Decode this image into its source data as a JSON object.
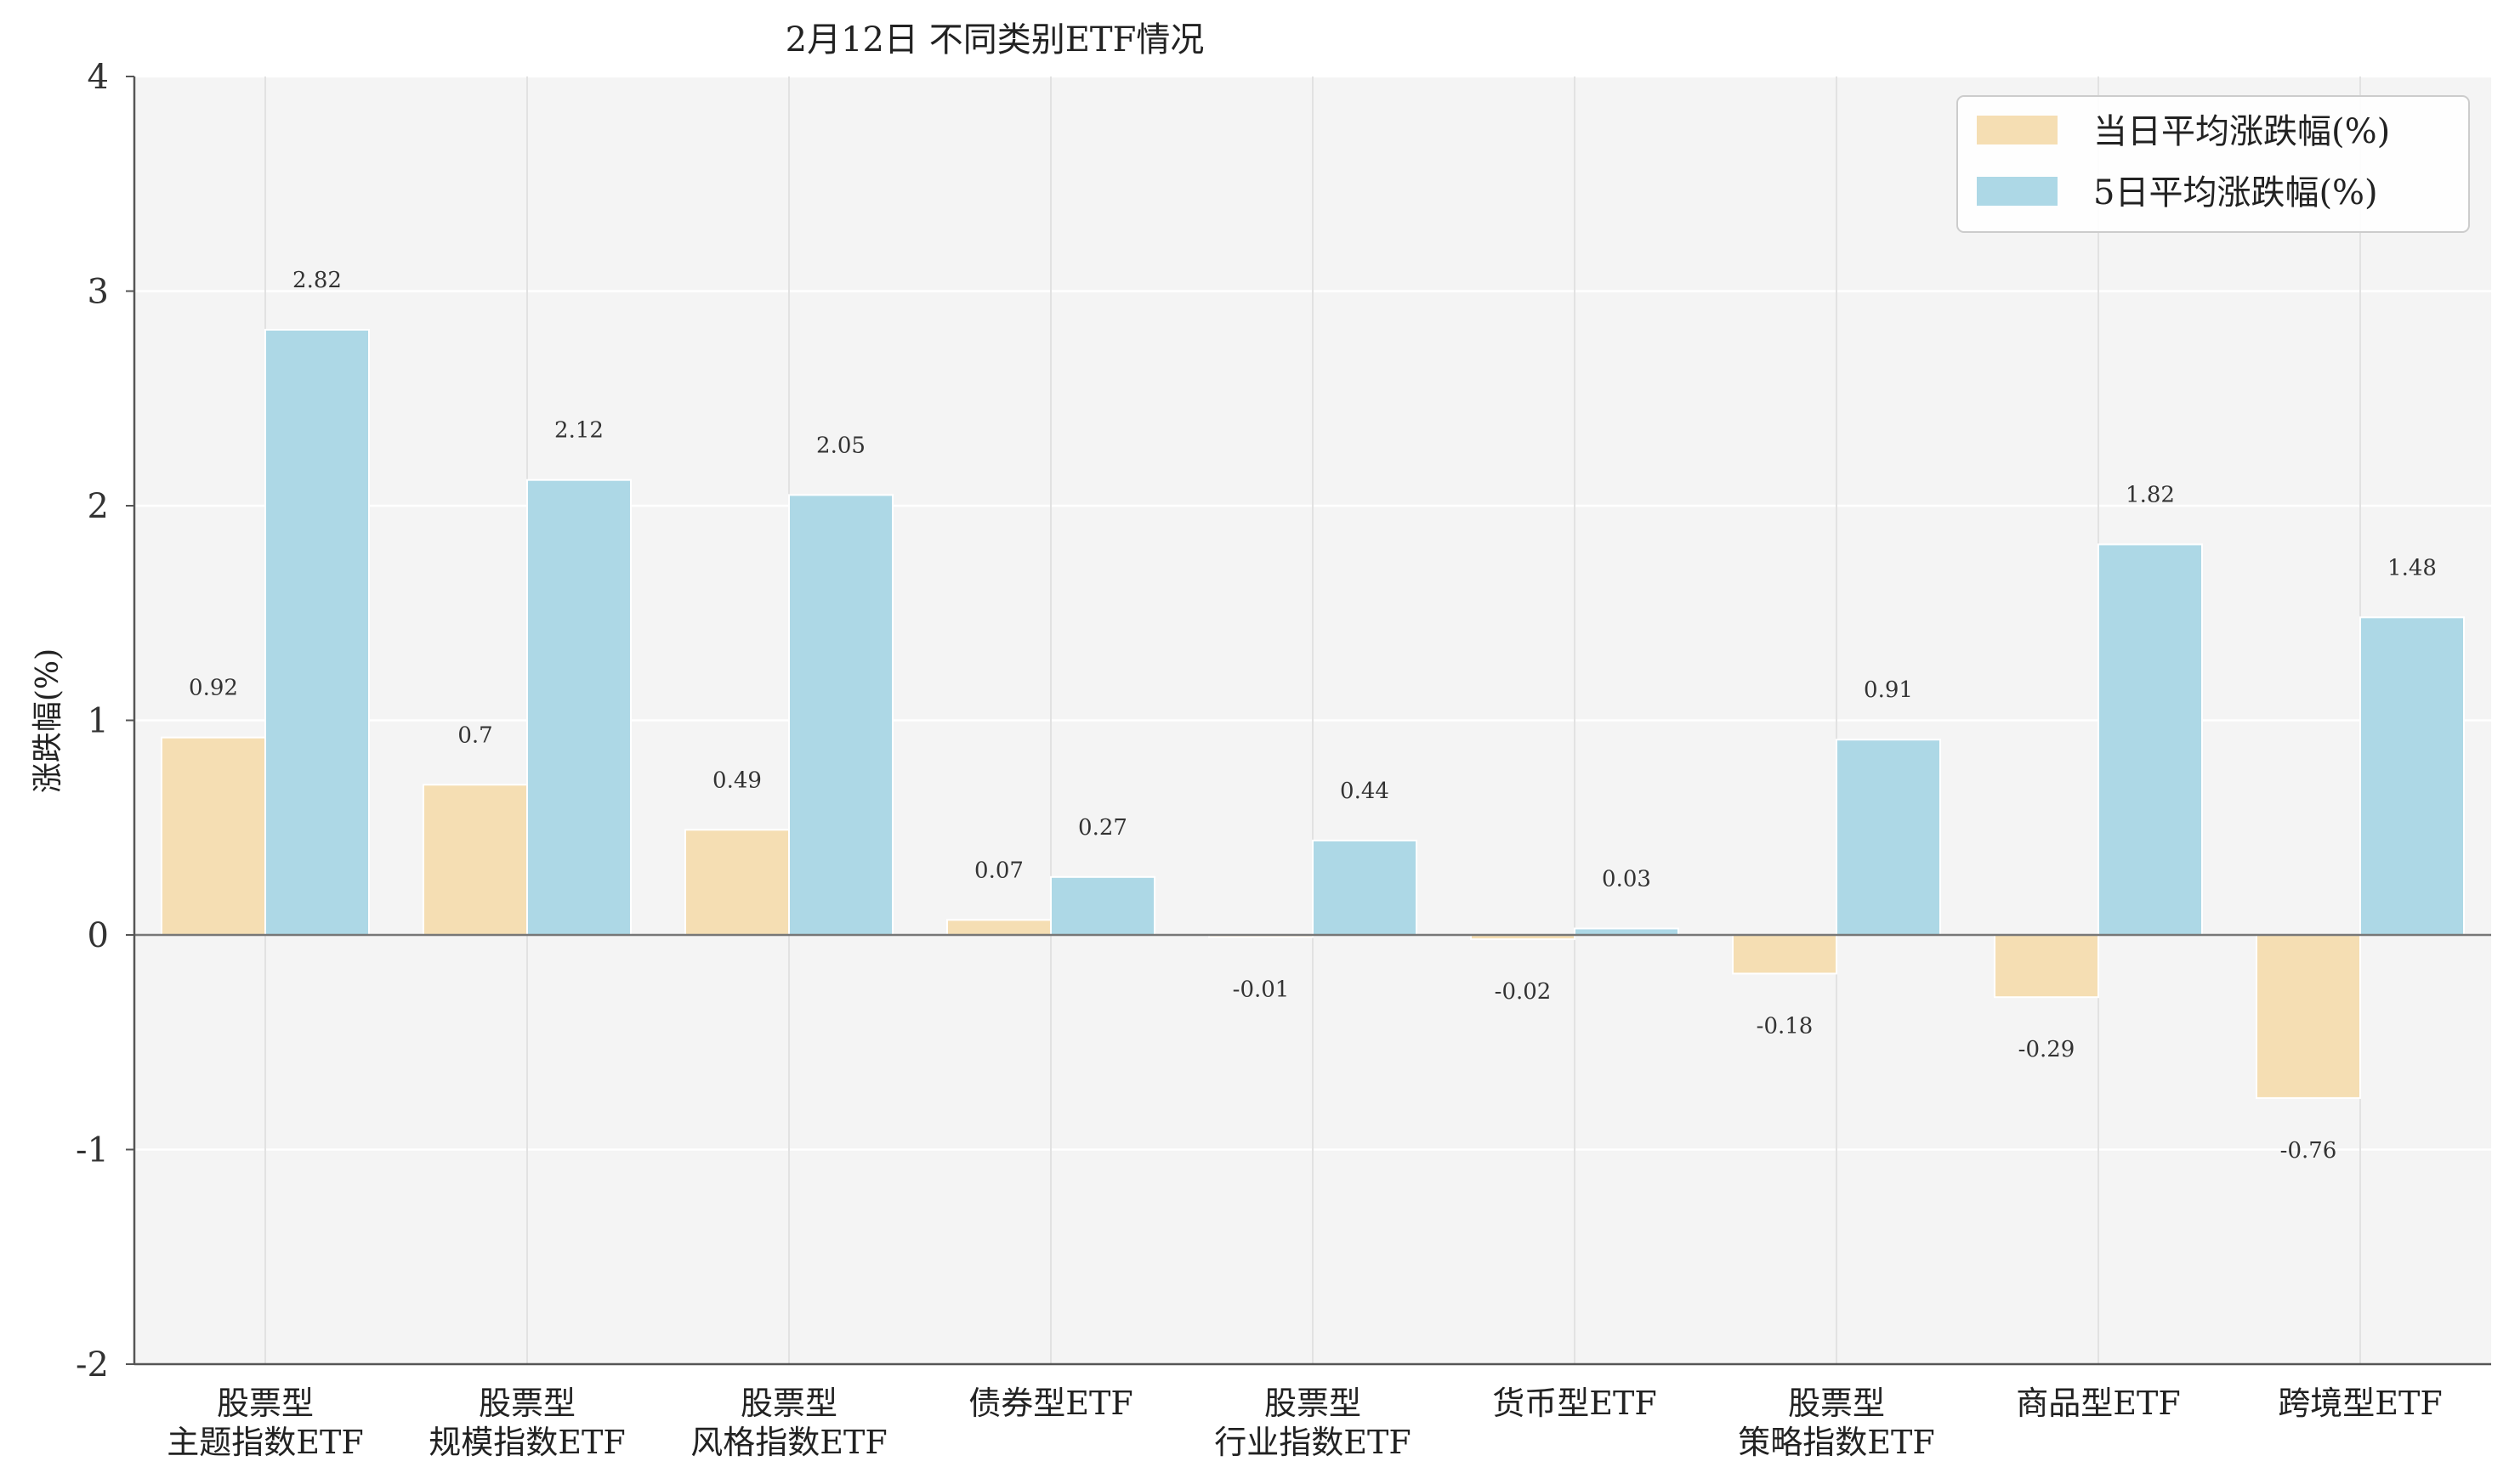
{
  "chart_data": {
    "type": "bar",
    "title": "2月12日 不同类别ETF情况",
    "xlabel": "",
    "ylabel": "涨跌幅(%)",
    "ylim": [
      -2,
      4
    ],
    "yticks": [
      -2,
      -1,
      0,
      1,
      2,
      3,
      4
    ],
    "grid": true,
    "legend_position": "top-right",
    "categories": [
      [
        "股票型",
        "主题指数ETF"
      ],
      [
        "股票型",
        "规模指数ETF"
      ],
      [
        "股票型",
        "风格指数ETF"
      ],
      [
        "债券型ETF"
      ],
      [
        "股票型",
        "行业指数ETF"
      ],
      [
        "货币型ETF"
      ],
      [
        "股票型",
        "策略指数ETF"
      ],
      [
        "商品型ETF"
      ],
      [
        "跨境型ETF"
      ]
    ],
    "series": [
      {
        "name": "当日平均涨跌幅(%)",
        "color": "#F5DEB3",
        "values": [
          0.92,
          0.7,
          0.49,
          0.07,
          -0.01,
          -0.02,
          -0.18,
          -0.29,
          -0.76
        ],
        "labels": [
          "0.92",
          "0.7",
          "0.49",
          "0.07",
          "-0.01",
          "-0.02",
          "-0.18",
          "-0.29",
          "-0.76"
        ]
      },
      {
        "name": "5日平均涨跌幅(%)",
        "color": "#ADD8E6",
        "values": [
          2.82,
          2.12,
          2.05,
          0.27,
          0.44,
          0.03,
          0.91,
          1.82,
          1.48
        ],
        "labels": [
          "2.82",
          "2.12",
          "2.05",
          "0.27",
          "0.44",
          "0.03",
          "0.91",
          "1.82",
          "1.48"
        ]
      }
    ]
  }
}
